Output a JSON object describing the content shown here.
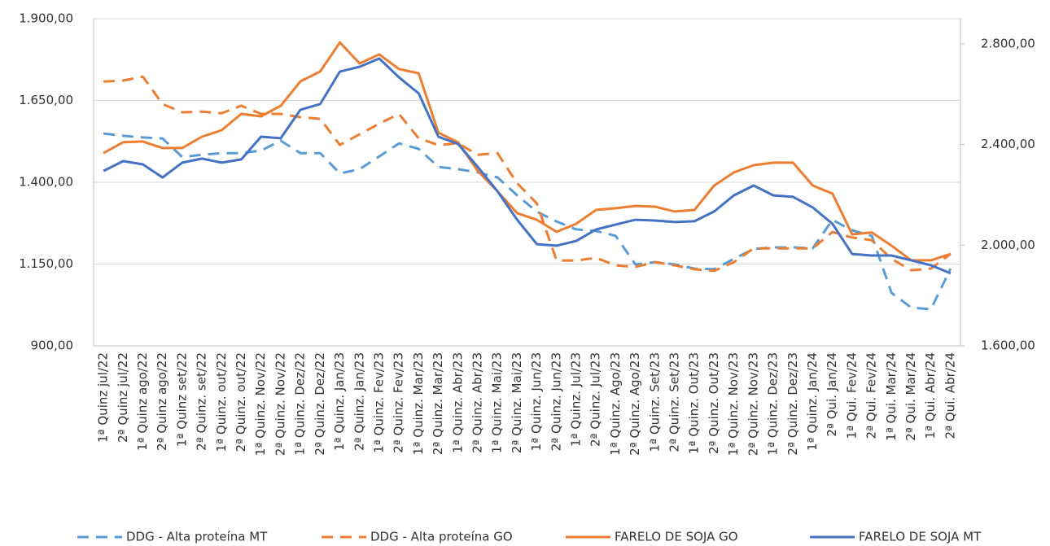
{
  "chart_data": {
    "type": "line",
    "categories": [
      "1ª Quinz jul/22",
      "2ª Quinz jul/22",
      "1ª Quinz ago/22",
      "2ª Quinz ago/22",
      "1ª Quinz set/22",
      "2ª Quinz. set/22",
      "1ª Quinz. out/22",
      "2ª Quinz. out/22",
      "1ª Quinz. Nov/22",
      "2ª Quinz. Nov/22",
      "1ª Quinz. Dez/22",
      "2ª Quinz. Dez/22",
      "1ª Quinz. Jan/23",
      "2ª Quinz. Jan/23",
      "1ª Quinz. Fev/23",
      "2ª Quinz. Fev/23",
      "1ª Quinz. Mar/23",
      "2ª Quinz. Mar/23",
      "1ª Quinz. Abr/23",
      "2ª Quinz. Abr/23",
      "1ª Quinz. Mai/23",
      "2ª Quinz. Mai/23",
      "1ª Quinz. Jun/23",
      "2ª Quinz. Jun/23",
      "1ª Quinz. Jul/23",
      "2ª Quinz. Jul/23",
      "1ª Quinz. Ago/23",
      "2ª Quinz. Ago/23",
      "1ª Quinz. Set/23",
      "2ª Quinz. Set/23",
      "1ª Quinz. Out/23",
      "2ª Quinz. Out/23",
      "1ª Quinz. Nov/23",
      "2ª Quinz. Nov/23",
      "1ª Quinz. Dez/23",
      "2ª Quinz. Dez/23",
      "1ª Quinz. Jan/24",
      "2ª Qui. Jan/24",
      "1ª Qui. Fev/24",
      "2ª Qui. Fev/24",
      "1ª Qui. Mar/24",
      "2ª Qui. Mar/24",
      "1ª Qui. Abr/24",
      "2ª Qui. Abr/24"
    ],
    "series": [
      {
        "name": "DDG - Alta proteína MT",
        "color": "#5b9bd5",
        "line_style": "dashed",
        "axis": "y",
        "values": [
          1549,
          1542,
          1537,
          1534,
          1477,
          1484,
          1489,
          1489,
          1497,
          1527,
          1489,
          1489,
          1427,
          1440,
          1479,
          1519,
          1502,
          1447,
          1440,
          1430,
          1415,
          1360,
          1310,
          1280,
          1256,
          1251,
          1236,
          1149,
          1156,
          1149,
          1136,
          1134,
          1166,
          1196,
          1201,
          1201,
          1198,
          1285,
          1253,
          1236,
          1062,
          1017,
          1012,
          1136
        ]
      },
      {
        "name": "DDG - Alta proteína GO",
        "color": "#ed7d31",
        "line_style": "dashed",
        "axis": "y",
        "values": [
          1708,
          1711,
          1723,
          1639,
          1614,
          1616,
          1611,
          1634,
          1609,
          1609,
          1599,
          1594,
          1514,
          1547,
          1579,
          1609,
          1534,
          1514,
          1519,
          1484,
          1489,
          1397,
          1335,
          1161,
          1161,
          1169,
          1146,
          1141,
          1156,
          1146,
          1134,
          1129,
          1156,
          1198,
          1198,
          1198,
          1198,
          1248,
          1231,
          1223,
          1166,
          1131,
          1136,
          1181
        ]
      },
      {
        "name": "FARELO DE SOJA GO",
        "color": "#ed7d31",
        "line_style": "solid",
        "axis": "y2",
        "values": [
          2366,
          2409,
          2412,
          2386,
          2386,
          2431,
          2457,
          2522,
          2512,
          2554,
          2651,
          2690,
          2806,
          2722,
          2758,
          2700,
          2683,
          2447,
          2409,
          2295,
          2214,
          2127,
          2101,
          2053,
          2085,
          2140,
          2147,
          2156,
          2153,
          2134,
          2140,
          2237,
          2289,
          2318,
          2328,
          2328,
          2237,
          2205,
          2043,
          2050,
          1998,
          1940,
          1940,
          1965
        ]
      },
      {
        "name": "FARELO DE SOJA MT",
        "color": "#4472c4",
        "line_style": "solid",
        "axis": "y2",
        "values": [
          2295,
          2334,
          2321,
          2269,
          2328,
          2344,
          2328,
          2341,
          2431,
          2425,
          2538,
          2561,
          2690,
          2709,
          2742,
          2667,
          2603,
          2431,
          2402,
          2311,
          2214,
          2101,
          2004,
          1998,
          2017,
          2062,
          2082,
          2101,
          2098,
          2092,
          2095,
          2134,
          2198,
          2237,
          2198,
          2192,
          2150,
          2085,
          1965,
          1959,
          1959,
          1940,
          1920,
          1888
        ]
      }
    ],
    "ylim": [
      900,
      1900
    ],
    "yticks": [
      {
        "value": 900,
        "label": "900,00"
      },
      {
        "value": 1150,
        "label": "1.150,00"
      },
      {
        "value": 1400,
        "label": "1.400,00"
      },
      {
        "value": 1650,
        "label": "1.650,00"
      },
      {
        "value": 1900,
        "label": "1.900,00"
      }
    ],
    "y2lim": [
      1600,
      2900
    ],
    "y2ticks": [
      {
        "value": 1600,
        "label": "1.600,00"
      },
      {
        "value": 2000,
        "label": "2.000,00"
      },
      {
        "value": 2400,
        "label": "2.400,00"
      },
      {
        "value": 2800,
        "label": "2.800,00"
      }
    ],
    "grid": true,
    "legend": "bottom"
  }
}
